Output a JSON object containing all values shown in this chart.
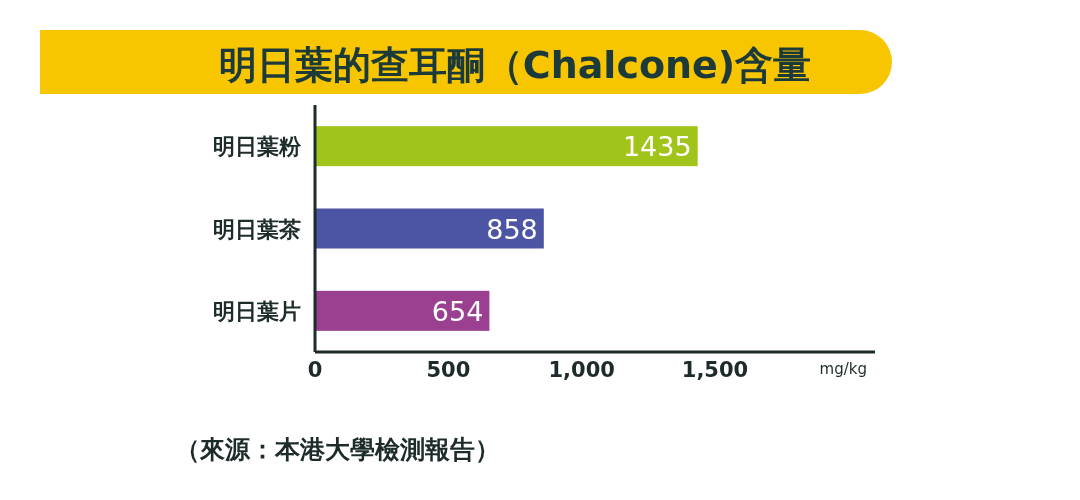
{
  "chart_data": {
    "type": "bar",
    "orientation": "horizontal",
    "title": "明日葉的查耳酮（Chalcone)含量",
    "categories": [
      "明日葉粉",
      "明日葉茶",
      "明日葉片"
    ],
    "values": [
      1435,
      858,
      654
    ],
    "colors": [
      "#a0c41a",
      "#4c55a3",
      "#9b3f91"
    ],
    "xlim": [
      0,
      2100
    ],
    "xticks": [
      0,
      500,
      {
        "value": 1000,
        "label": "1,000"
      },
      {
        "value": 1500,
        "label": "1,500"
      }
    ],
    "xlabel": "mg/kg",
    "data_labels": true,
    "annotations": [
      "（來源：本港大學檢測報告）"
    ]
  }
}
